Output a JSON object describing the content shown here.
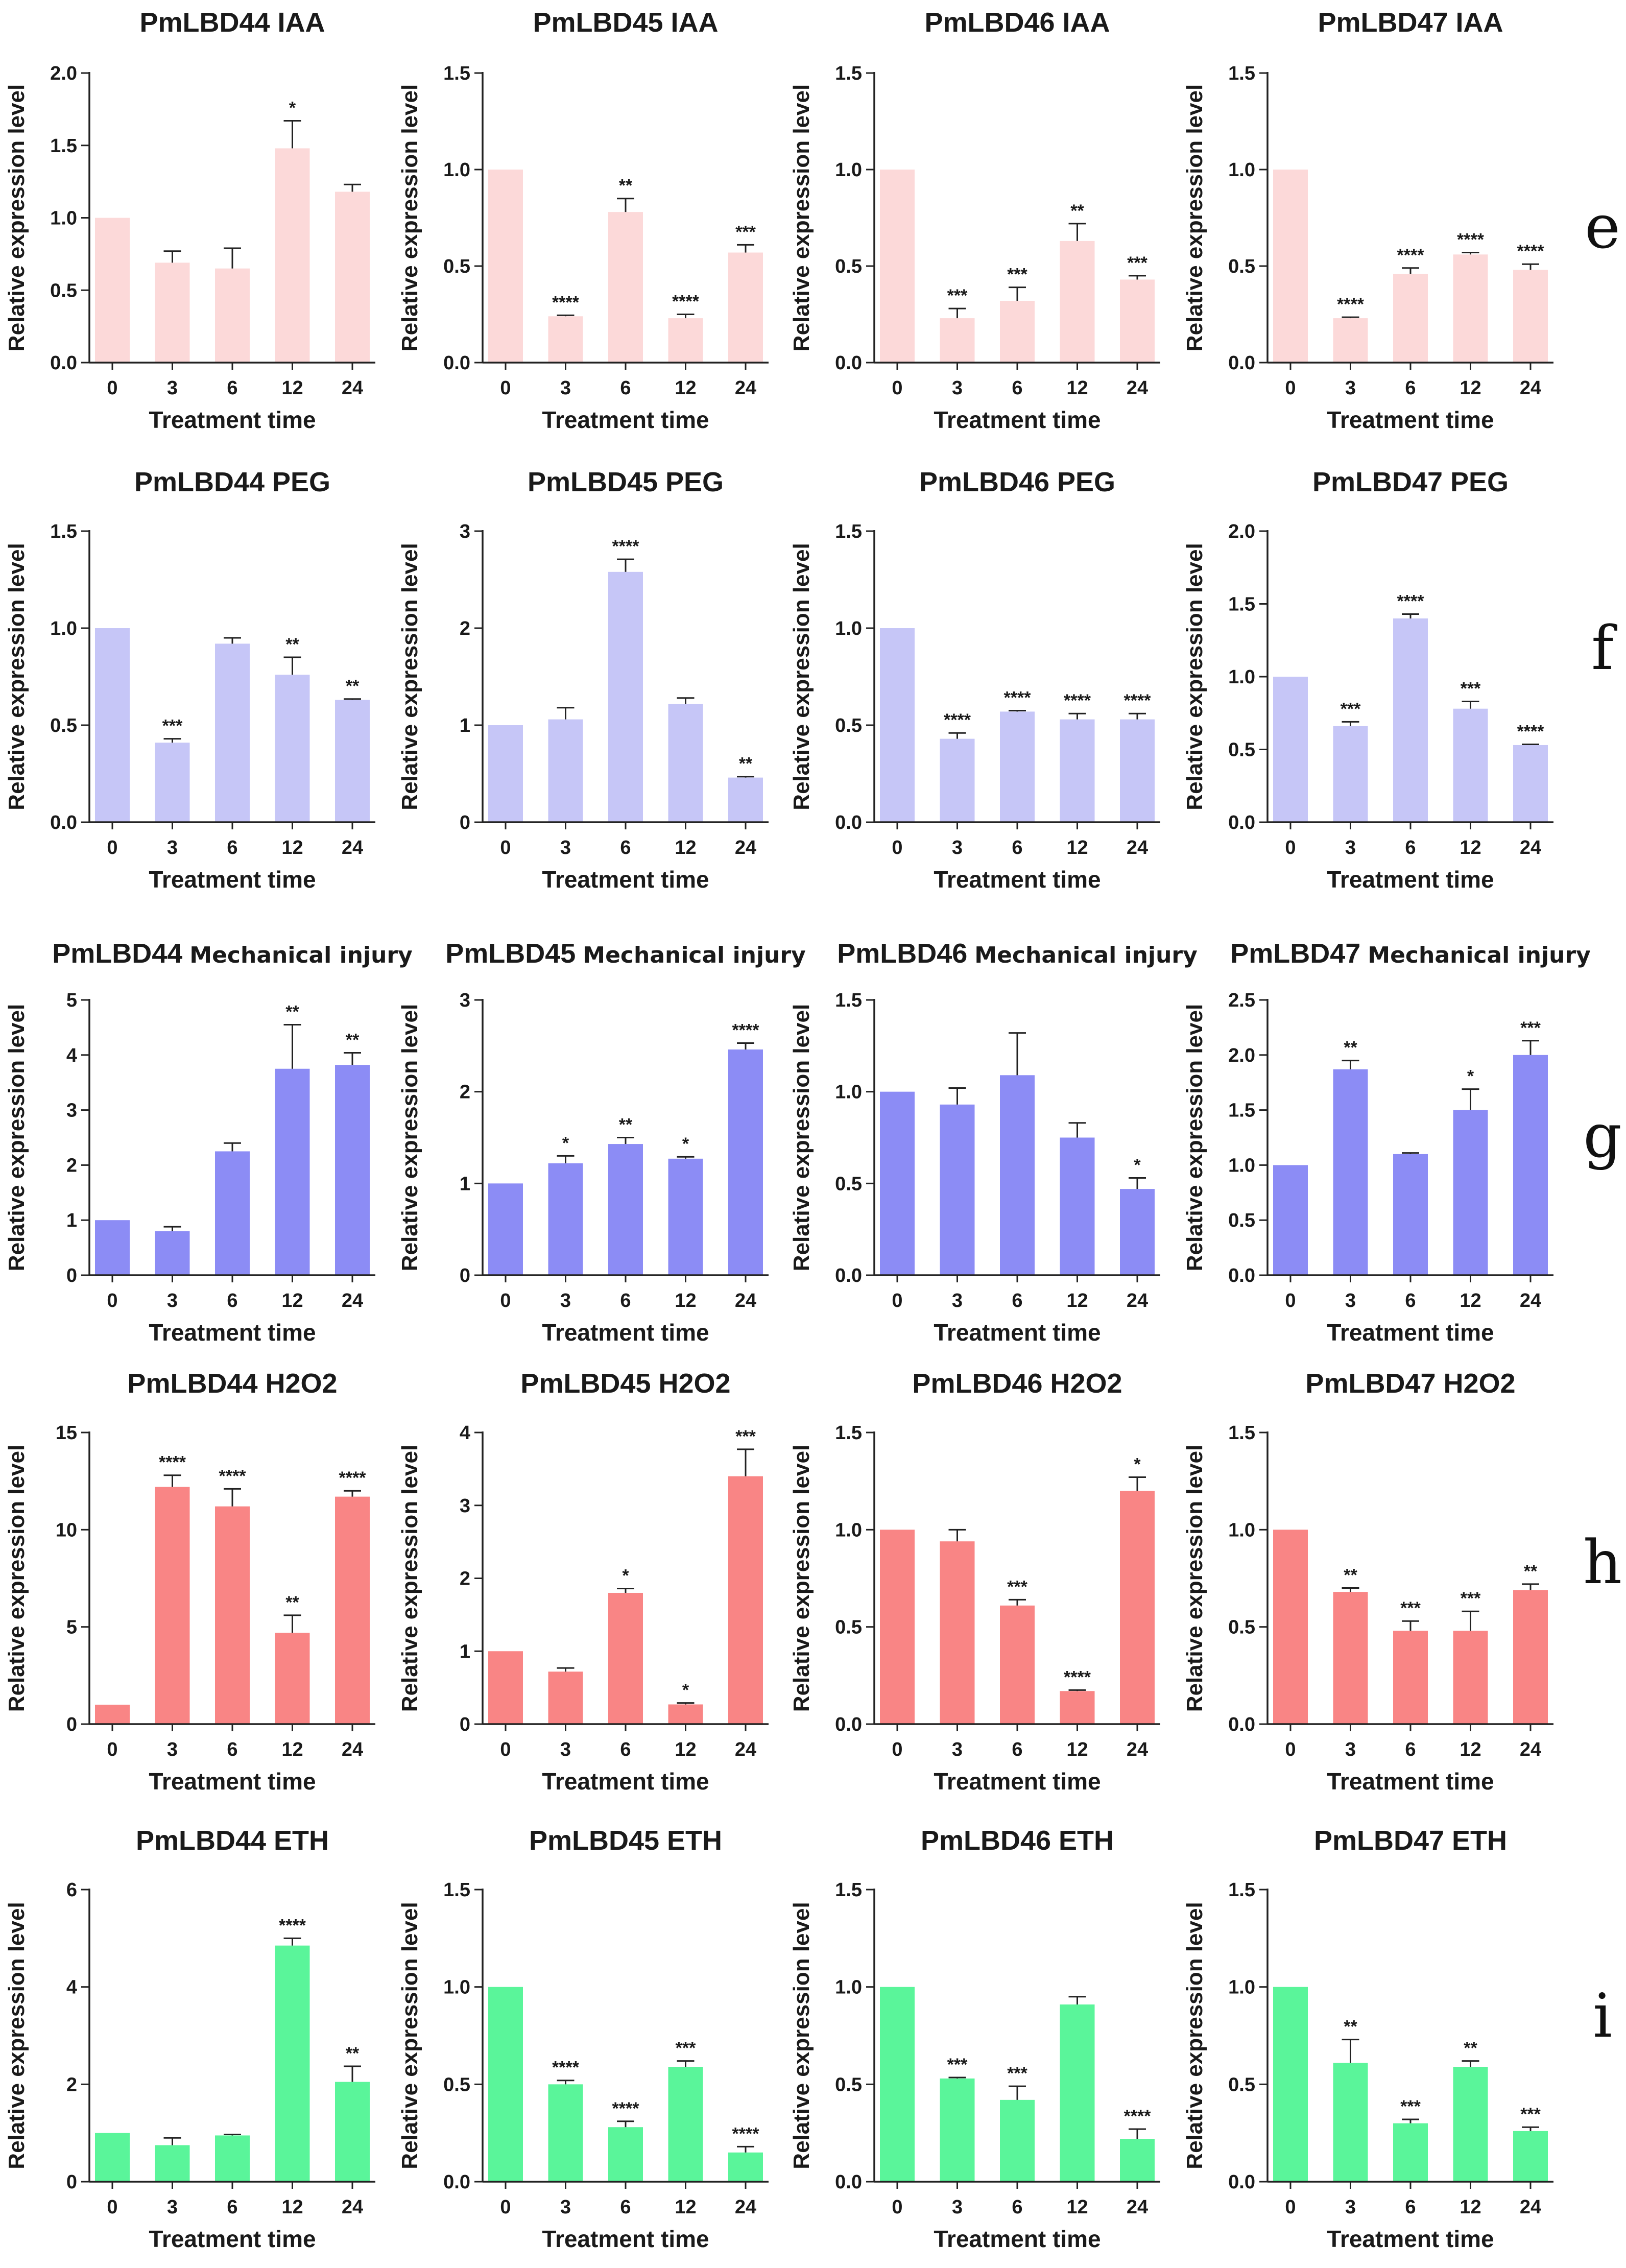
{
  "chart_data": [
    {
      "type": "bar",
      "row": "e",
      "title": "PmLBD44 IAA",
      "xlabel": "Treatment time",
      "ylabel": "Relative expression level",
      "categories": [
        "0",
        "3",
        "6",
        "12",
        "24"
      ],
      "values": [
        1.0,
        0.69,
        0.65,
        1.48,
        1.18
      ],
      "errors": [
        0,
        0.08,
        0.14,
        0.19,
        0.05
      ],
      "significance": [
        "",
        "",
        "",
        "*",
        ""
      ],
      "ylim": [
        0,
        2.0
      ],
      "yticks": [
        "0.0",
        "0.5",
        "1.0",
        "1.5",
        "2.0"
      ],
      "color": "#fcd9d9"
    },
    {
      "type": "bar",
      "row": "e",
      "title": "PmLBD45 IAA",
      "xlabel": "Treatment time",
      "ylabel": "Relative expression level",
      "categories": [
        "0",
        "3",
        "6",
        "12",
        "24"
      ],
      "values": [
        1.0,
        0.24,
        0.78,
        0.23,
        0.57
      ],
      "errors": [
        0,
        0.005,
        0.07,
        0.02,
        0.04
      ],
      "significance": [
        "",
        "****",
        "**",
        "****",
        "***"
      ],
      "ylim": [
        0,
        1.5
      ],
      "yticks": [
        "0.0",
        "0.5",
        "1.0",
        "1.5"
      ],
      "color": "#fcd9d9"
    },
    {
      "type": "bar",
      "row": "e",
      "title": "PmLBD46 IAA",
      "xlabel": "Treatment time",
      "ylabel": "Relative expression level",
      "categories": [
        "0",
        "3",
        "6",
        "12",
        "24"
      ],
      "values": [
        1.0,
        0.23,
        0.32,
        0.63,
        0.43
      ],
      "errors": [
        0,
        0.05,
        0.07,
        0.09,
        0.02
      ],
      "significance": [
        "",
        "***",
        "***",
        "**",
        "***"
      ],
      "ylim": [
        0,
        1.5
      ],
      "yticks": [
        "0.0",
        "0.5",
        "1.0",
        "1.5"
      ],
      "color": "#fcd9d9"
    },
    {
      "type": "bar",
      "row": "e",
      "title": "PmLBD47 IAA",
      "xlabel": "Treatment time",
      "ylabel": "Relative expression level",
      "categories": [
        "0",
        "3",
        "6",
        "12",
        "24"
      ],
      "values": [
        1.0,
        0.23,
        0.46,
        0.56,
        0.48
      ],
      "errors": [
        0,
        0.005,
        0.03,
        0.01,
        0.03
      ],
      "significance": [
        "",
        "****",
        "****",
        "****",
        "****"
      ],
      "ylim": [
        0,
        1.5
      ],
      "yticks": [
        "0.0",
        "0.5",
        "1.0",
        "1.5"
      ],
      "color": "#fcd9d9"
    },
    {
      "type": "bar",
      "row": "f",
      "title": "PmLBD44 PEG",
      "xlabel": "Treatment time",
      "ylabel": "Relative expression level",
      "categories": [
        "0",
        "3",
        "6",
        "12",
        "24"
      ],
      "values": [
        1.0,
        0.41,
        0.92,
        0.76,
        0.63
      ],
      "errors": [
        0,
        0.02,
        0.03,
        0.09,
        0.005
      ],
      "significance": [
        "",
        "***",
        "",
        "**",
        "**"
      ],
      "ylim": [
        0,
        1.5
      ],
      "yticks": [
        "0.0",
        "0.5",
        "1.0",
        "1.5"
      ],
      "color": "#c6c6f7"
    },
    {
      "type": "bar",
      "row": "f",
      "title": "PmLBD45 PEG",
      "xlabel": "Treatment time",
      "ylabel": "Relative expression level",
      "categories": [
        "0",
        "3",
        "6",
        "12",
        "24"
      ],
      "values": [
        1.0,
        1.06,
        2.58,
        1.22,
        0.46
      ],
      "errors": [
        0,
        0.12,
        0.13,
        0.06,
        0.01
      ],
      "significance": [
        "",
        "",
        "****",
        "",
        "**"
      ],
      "ylim": [
        0,
        3
      ],
      "yticks": [
        "0",
        "1",
        "2",
        "3"
      ],
      "color": "#c6c6f7"
    },
    {
      "type": "bar",
      "row": "f",
      "title": "PmLBD46 PEG",
      "xlabel": "Treatment time",
      "ylabel": "Relative expression level",
      "categories": [
        "0",
        "3",
        "6",
        "12",
        "24"
      ],
      "values": [
        1.0,
        0.43,
        0.57,
        0.53,
        0.53
      ],
      "errors": [
        0,
        0.03,
        0.005,
        0.03,
        0.03
      ],
      "significance": [
        "",
        "****",
        "****",
        "****",
        "****"
      ],
      "ylim": [
        0,
        1.5
      ],
      "yticks": [
        "0.0",
        "0.5",
        "1.0",
        "1.5"
      ],
      "color": "#c6c6f7"
    },
    {
      "type": "bar",
      "row": "f",
      "title": "PmLBD47 PEG",
      "xlabel": "Treatment time",
      "ylabel": "Relative expression level",
      "categories": [
        "0",
        "3",
        "6",
        "12",
        "24"
      ],
      "values": [
        1.0,
        0.66,
        1.4,
        0.78,
        0.53
      ],
      "errors": [
        0,
        0.03,
        0.03,
        0.05,
        0.005
      ],
      "significance": [
        "",
        "***",
        "****",
        "***",
        "****"
      ],
      "ylim": [
        0,
        2.0
      ],
      "yticks": [
        "0.0",
        "0.5",
        "1.0",
        "1.5",
        "2.0"
      ],
      "color": "#c6c6f7"
    },
    {
      "type": "bar",
      "row": "g",
      "title": "PmLBD44",
      "title_suffix": "Mechanical injury",
      "xlabel": "Treatment time",
      "ylabel": "Relative expression level",
      "categories": [
        "0",
        "3",
        "6",
        "12",
        "24"
      ],
      "values": [
        1.0,
        0.8,
        2.25,
        3.75,
        3.82
      ],
      "errors": [
        0,
        0.08,
        0.15,
        0.8,
        0.22
      ],
      "significance": [
        "",
        "",
        "",
        "**",
        "**"
      ],
      "ylim": [
        0,
        5
      ],
      "yticks": [
        "0",
        "1",
        "2",
        "3",
        "4",
        "5"
      ],
      "color": "#8c8cf5"
    },
    {
      "type": "bar",
      "row": "g",
      "title": "PmLBD45",
      "title_suffix": "Mechanical injury",
      "xlabel": "Treatment time",
      "ylabel": "Relative expression level",
      "categories": [
        "0",
        "3",
        "6",
        "12",
        "24"
      ],
      "values": [
        1.0,
        1.22,
        1.43,
        1.27,
        2.46
      ],
      "errors": [
        0,
        0.08,
        0.07,
        0.02,
        0.07
      ],
      "significance": [
        "",
        "*",
        "**",
        "*",
        "****"
      ],
      "ylim": [
        0,
        3
      ],
      "yticks": [
        "0",
        "1",
        "2",
        "3"
      ],
      "color": "#8c8cf5"
    },
    {
      "type": "bar",
      "row": "g",
      "title": "PmLBD46",
      "title_suffix": "Mechanical injury",
      "xlabel": "Treatment time",
      "ylabel": "Relative expression level",
      "categories": [
        "0",
        "3",
        "6",
        "12",
        "24"
      ],
      "values": [
        1.0,
        0.93,
        1.09,
        0.75,
        0.47
      ],
      "errors": [
        0,
        0.09,
        0.23,
        0.08,
        0.06
      ],
      "significance": [
        "",
        "",
        "",
        "",
        "*"
      ],
      "ylim": [
        0,
        1.5
      ],
      "yticks": [
        "0.0",
        "0.5",
        "1.0",
        "1.5"
      ],
      "color": "#8c8cf5"
    },
    {
      "type": "bar",
      "row": "g",
      "title": "PmLBD47",
      "title_suffix": "Mechanical injury",
      "xlabel": "Treatment time",
      "ylabel": "Relative expression level",
      "categories": [
        "0",
        "3",
        "6",
        "12",
        "24"
      ],
      "values": [
        1.0,
        1.87,
        1.1,
        1.5,
        2.0
      ],
      "errors": [
        0,
        0.08,
        0.01,
        0.19,
        0.13
      ],
      "significance": [
        "",
        "**",
        "",
        "*",
        "***"
      ],
      "ylim": [
        0,
        2.5
      ],
      "yticks": [
        "0.0",
        "0.5",
        "1.0",
        "1.5",
        "2.0",
        "2.5"
      ],
      "color": "#8c8cf5"
    },
    {
      "type": "bar",
      "row": "h",
      "title": "PmLBD44 H2O2",
      "xlabel": "Treatment time",
      "ylabel": "Relative expression level",
      "categories": [
        "0",
        "3",
        "6",
        "12",
        "24"
      ],
      "values": [
        1.0,
        12.2,
        11.2,
        4.7,
        11.7
      ],
      "errors": [
        0,
        0.6,
        0.9,
        0.9,
        0.3
      ],
      "significance": [
        "",
        "****",
        "****",
        "**",
        "****"
      ],
      "ylim": [
        0,
        15
      ],
      "yticks": [
        "0",
        "5",
        "10",
        "15"
      ],
      "color": "#f98585"
    },
    {
      "type": "bar",
      "row": "h",
      "title": "PmLBD45 H2O2",
      "xlabel": "Treatment time",
      "ylabel": "Relative expression level",
      "categories": [
        "0",
        "3",
        "6",
        "12",
        "24"
      ],
      "values": [
        1.0,
        0.72,
        1.8,
        0.27,
        3.4
      ],
      "errors": [
        0,
        0.05,
        0.06,
        0.02,
        0.37
      ],
      "significance": [
        "",
        "",
        "*",
        "*",
        "***"
      ],
      "ylim": [
        0,
        4
      ],
      "yticks": [
        "0",
        "1",
        "2",
        "3",
        "4"
      ],
      "color": "#f98585"
    },
    {
      "type": "bar",
      "row": "h",
      "title": "PmLBD46 H2O2",
      "xlabel": "Treatment time",
      "ylabel": "Relative expression level",
      "categories": [
        "0",
        "3",
        "6",
        "12",
        "24"
      ],
      "values": [
        1.0,
        0.94,
        0.61,
        0.17,
        1.2
      ],
      "errors": [
        0,
        0.06,
        0.03,
        0.005,
        0.07
      ],
      "significance": [
        "",
        "",
        "***",
        "****",
        "*"
      ],
      "ylim": [
        0,
        1.5
      ],
      "yticks": [
        "0.0",
        "0.5",
        "1.0",
        "1.5"
      ],
      "color": "#f98585"
    },
    {
      "type": "bar",
      "row": "h",
      "title": "PmLBD47 H2O2",
      "xlabel": "Treatment time",
      "ylabel": "Relative expression level",
      "categories": [
        "0",
        "3",
        "6",
        "12",
        "24"
      ],
      "values": [
        1.0,
        0.68,
        0.48,
        0.48,
        0.69
      ],
      "errors": [
        0,
        0.02,
        0.05,
        0.1,
        0.03
      ],
      "significance": [
        "",
        "**",
        "***",
        "***",
        "**"
      ],
      "ylim": [
        0,
        1.5
      ],
      "yticks": [
        "0.0",
        "0.5",
        "1.0",
        "1.5"
      ],
      "color": "#f98585"
    },
    {
      "type": "bar",
      "row": "i",
      "title": "PmLBD44 ETH",
      "xlabel": "Treatment time",
      "ylabel": "Relative expression level",
      "categories": [
        "0",
        "3",
        "6",
        "12",
        "24"
      ],
      "values": [
        1.0,
        0.75,
        0.95,
        4.85,
        2.05
      ],
      "errors": [
        0,
        0.15,
        0.02,
        0.15,
        0.32
      ],
      "significance": [
        "",
        "",
        "",
        "****",
        "**"
      ],
      "ylim": [
        0,
        6
      ],
      "yticks": [
        "0",
        "2",
        "4",
        "6"
      ],
      "color": "#5af59a"
    },
    {
      "type": "bar",
      "row": "i",
      "title": "PmLBD45 ETH",
      "xlabel": "Treatment time",
      "ylabel": "Relative expression level",
      "categories": [
        "0",
        "3",
        "6",
        "12",
        "24"
      ],
      "values": [
        1.0,
        0.5,
        0.28,
        0.59,
        0.15
      ],
      "errors": [
        0,
        0.02,
        0.03,
        0.03,
        0.03
      ],
      "significance": [
        "",
        "****",
        "****",
        "***",
        "****"
      ],
      "ylim": [
        0,
        1.5
      ],
      "yticks": [
        "0.0",
        "0.5",
        "1.0",
        "1.5"
      ],
      "color": "#5af59a"
    },
    {
      "type": "bar",
      "row": "i",
      "title": "PmLBD46 ETH",
      "xlabel": "Treatment time",
      "ylabel": "Relative expression level",
      "categories": [
        "0",
        "3",
        "6",
        "12",
        "24"
      ],
      "values": [
        1.0,
        0.53,
        0.42,
        0.91,
        0.22
      ],
      "errors": [
        0,
        0.005,
        0.07,
        0.04,
        0.05
      ],
      "significance": [
        "",
        "***",
        "***",
        "",
        "****"
      ],
      "ylim": [
        0,
        1.5
      ],
      "yticks": [
        "0.0",
        "0.5",
        "1.0",
        "1.5"
      ],
      "color": "#5af59a"
    },
    {
      "type": "bar",
      "row": "i",
      "title": "PmLBD47 ETH",
      "xlabel": "Treatment time",
      "ylabel": "Relative expression level",
      "categories": [
        "0",
        "3",
        "6",
        "12",
        "24"
      ],
      "values": [
        1.0,
        0.61,
        0.3,
        0.59,
        0.26
      ],
      "errors": [
        0,
        0.12,
        0.02,
        0.03,
        0.02
      ],
      "significance": [
        "",
        "**",
        "***",
        "**",
        "***"
      ],
      "ylim": [
        0,
        1.5
      ],
      "yticks": [
        "0.0",
        "0.5",
        "1.0",
        "1.5"
      ],
      "color": "#5af59a"
    }
  ],
  "row_labels": [
    "e",
    "f",
    "g",
    "h",
    "i"
  ]
}
